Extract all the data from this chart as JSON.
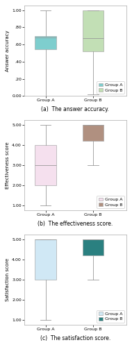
{
  "charts": [
    {
      "title": "(a)  The answer accuracy.",
      "ylabel": "Answer accuracy",
      "ylim": [
        0.0,
        1.05
      ],
      "yticks": [
        0.0,
        0.2,
        0.4,
        0.6,
        0.8,
        1.0
      ],
      "ytick_labels": [
        "0.00",
        ".20",
        ".40",
        ".60",
        ".80",
        "1.00"
      ],
      "group_a": {
        "whislo": 0.0,
        "q1": 0.54,
        "med": 0.68,
        "q3": 0.7,
        "whishi": 1.0,
        "color": "#7ECECE",
        "label": "Group A"
      },
      "group_b": {
        "whislo": 0.02,
        "q1": 0.52,
        "med": 0.67,
        "q3": 1.0,
        "whishi": 1.0,
        "color": "#C2DFB5",
        "label": "Group B"
      }
    },
    {
      "title": "(b)  The effectiveness score.",
      "ylabel": "Effectiveness score",
      "ylim": [
        0.75,
        5.25
      ],
      "yticks": [
        1.0,
        2.0,
        3.0,
        4.0,
        5.0
      ],
      "ytick_labels": [
        "1.00",
        "2.00",
        "3.00",
        "4.00",
        "5.00"
      ],
      "group_a": {
        "whislo": 1.0,
        "q1": 2.0,
        "med": 3.0,
        "q3": 4.0,
        "whishi": 5.0,
        "color": "#F5E0EE",
        "label": "Group A"
      },
      "group_b": {
        "whislo": 3.0,
        "q1": 4.2,
        "med": 5.0,
        "q3": 5.0,
        "whishi": 5.0,
        "color": "#B09080",
        "label": "Group B"
      }
    },
    {
      "title": "(c)  The satisfaction score.",
      "ylabel": "Satisfaction score",
      "ylim": [
        0.75,
        5.25
      ],
      "yticks": [
        1.0,
        2.0,
        3.0,
        4.0,
        5.0
      ],
      "ytick_labels": [
        "1.00",
        "2.00",
        "3.00",
        "4.00",
        "5.00"
      ],
      "group_a": {
        "whislo": 1.0,
        "q1": 3.0,
        "med": 5.0,
        "q3": 5.0,
        "whishi": 5.0,
        "color": "#D0E8F5",
        "label": "Group A"
      },
      "group_b": {
        "whislo": 3.0,
        "q1": 4.2,
        "med": 5.0,
        "q3": 5.0,
        "whishi": 5.0,
        "color": "#2A8080",
        "label": "Group B"
      }
    }
  ],
  "xtick_labels": [
    "Group A",
    "Group B"
  ],
  "legend_fontsize": 4.5,
  "tick_fontsize": 4.5,
  "label_fontsize": 5.0,
  "title_fontsize": 5.5,
  "bg_color": "#ffffff"
}
